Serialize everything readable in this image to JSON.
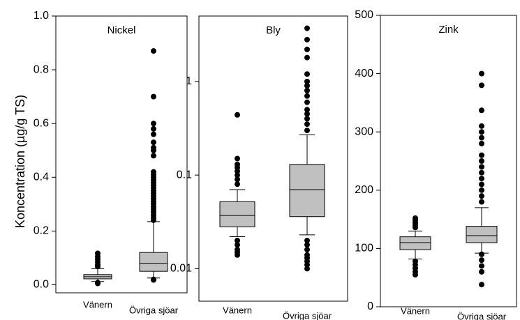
{
  "chart_data": [
    {
      "type": "box",
      "title": "Nickel",
      "ylabel": "Koncentration (µg/g TS)",
      "log_scale": false,
      "color": "#c0c0c0",
      "categories": [
        "Vänern",
        "Övriga sjöar"
      ],
      "ylim": [
        -0.03,
        1.0
      ],
      "yticks": [
        {
          "value": 0,
          "label": "0.0"
        },
        0.2,
        0.4,
        0.6,
        0.8,
        {
          "value": 1,
          "label": "1.0"
        }
      ],
      "boxes": [
        {
          "whislo": 0.012,
          "q1": 0.022,
          "med": 0.03,
          "q3": 0.038,
          "whishi": 0.06,
          "fliers": [
            0.117,
            0.105,
            0.095,
            0.085,
            0.075,
            0.068,
            0.008,
            0.005
          ]
        },
        {
          "whislo": 0.025,
          "q1": 0.05,
          "med": 0.08,
          "q3": 0.12,
          "whishi": 0.235,
          "fliers": [
            0.87,
            0.7,
            0.6,
            0.58,
            0.56,
            0.53,
            0.51,
            0.5,
            0.48,
            0.42,
            0.41,
            0.4,
            0.39,
            0.38,
            0.37,
            0.36,
            0.35,
            0.34,
            0.33,
            0.32,
            0.31,
            0.3,
            0.29,
            0.28,
            0.27,
            0.26,
            0.25,
            0.24,
            0.02,
            0.018
          ]
        }
      ]
    },
    {
      "type": "box",
      "title": "Bly",
      "log_scale": true,
      "color": "#c0c0c0",
      "categories": [
        "Vänern",
        "Övriga sjöar"
      ],
      "ylim": [
        0.0045,
        5
      ],
      "yticks": [
        0.01,
        0.1,
        1
      ],
      "boxes": [
        {
          "whislo": 0.022,
          "q1": 0.028,
          "med": 0.037,
          "q3": 0.052,
          "whishi": 0.07,
          "fliers": [
            0.44,
            0.15,
            0.13,
            0.12,
            0.11,
            0.1,
            0.09,
            0.08,
            0.02,
            0.018,
            0.016,
            0.015,
            0.014
          ]
        },
        {
          "whislo": 0.023,
          "q1": 0.036,
          "med": 0.07,
          "q3": 0.13,
          "whishi": 0.27,
          "fliers": [
            3.7,
            2.8,
            2.2,
            1.8,
            1.2,
            1.0,
            0.9,
            0.8,
            0.7,
            0.6,
            0.5,
            0.45,
            0.4,
            0.35,
            0.3,
            0.02,
            0.018,
            0.016,
            0.014,
            0.013,
            0.012,
            0.011,
            0.01
          ]
        }
      ]
    },
    {
      "type": "box",
      "title": "Zink",
      "log_scale": false,
      "color": "#c0c0c0",
      "categories": [
        "Vänern",
        "Övriga sjöar"
      ],
      "ylim": [
        0,
        500
      ],
      "yticks": [
        0,
        100,
        200,
        300,
        400,
        500
      ],
      "boxes": [
        {
          "whislo": 82,
          "q1": 98,
          "med": 110,
          "q3": 120,
          "whishi": 130,
          "fliers": [
            152,
            148,
            144,
            140,
            136,
            78,
            72,
            66,
            60,
            55
          ]
        },
        {
          "whislo": 92,
          "q1": 110,
          "med": 122,
          "q3": 138,
          "whishi": 170,
          "fliers": [
            400,
            380,
            337,
            310,
            300,
            290,
            280,
            260,
            250,
            240,
            230,
            220,
            210,
            200,
            190,
            180,
            90,
            80,
            70,
            60,
            38
          ]
        }
      ]
    }
  ]
}
